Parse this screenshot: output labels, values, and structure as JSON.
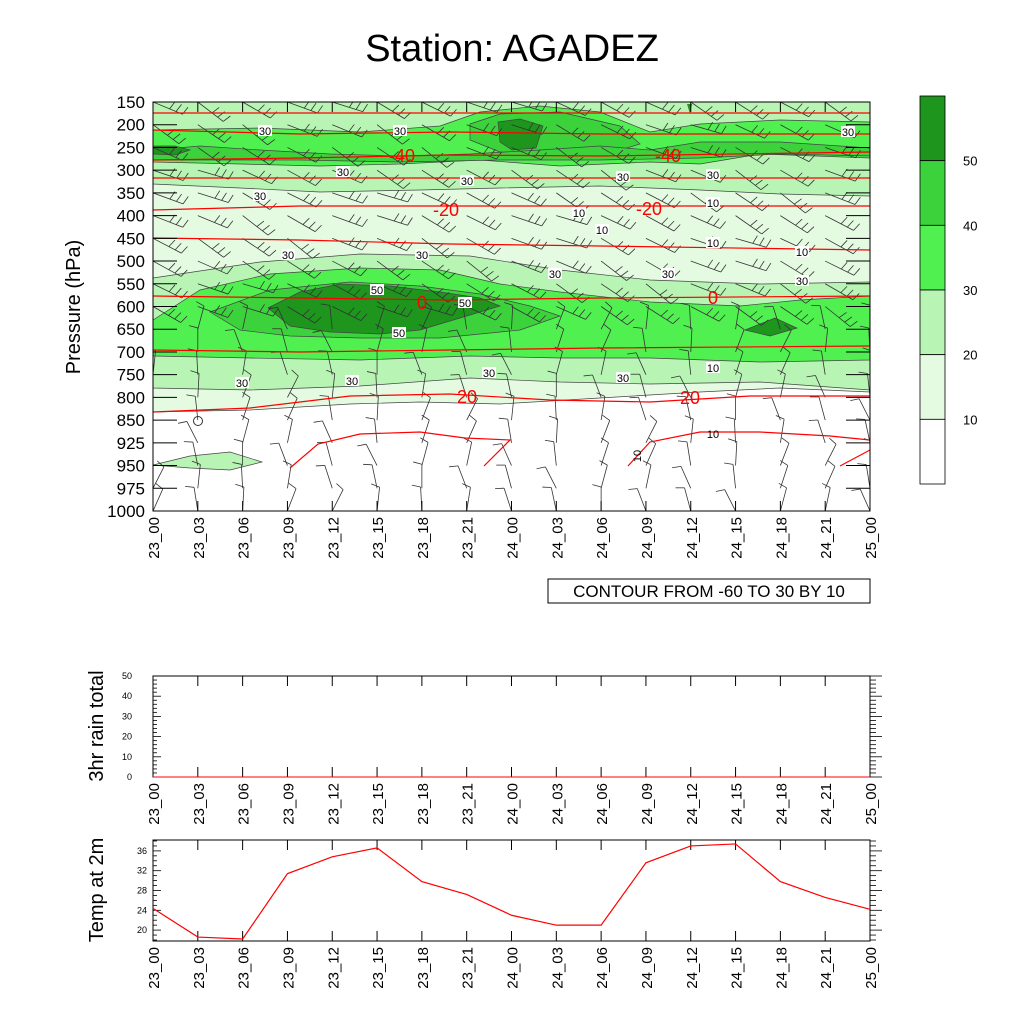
{
  "title": "Station: AGADEZ",
  "time_labels": [
    "23_00",
    "23_03",
    "23_06",
    "23_09",
    "23_12",
    "23_15",
    "23_18",
    "23_21",
    "24_00",
    "24_03",
    "24_06",
    "24_09",
    "24_12",
    "24_15",
    "24_18",
    "24_21",
    "25_00"
  ],
  "chart_data": [
    {
      "type": "heatmap",
      "name": "time-pressure cross-section",
      "ylabel": "Pressure (hPa)",
      "x": [
        "23_00",
        "23_03",
        "23_06",
        "23_09",
        "23_12",
        "23_15",
        "23_18",
        "23_21",
        "24_00",
        "24_03",
        "24_06",
        "24_09",
        "24_12",
        "24_15",
        "24_18",
        "24_21",
        "25_00"
      ],
      "y_levels": [
        150,
        200,
        250,
        300,
        350,
        400,
        450,
        500,
        550,
        600,
        650,
        700,
        750,
        800,
        850,
        925,
        950,
        975,
        1000
      ],
      "fill_levels": [
        10,
        20,
        30,
        40,
        50
      ],
      "fill_colors": [
        "#ffffff",
        "#e4fbe2",
        "#b8f5b4",
        "#50f050",
        "#3cd23c",
        "#1e961e"
      ],
      "contour_info": "CONTOUR FROM -60 TO 30 BY 10",
      "contour_color": "#ff0000",
      "contour_labels": [
        "-40",
        "-40",
        "-20",
        "-20",
        "0",
        "0",
        "20",
        "20"
      ],
      "fill_contour_labels": [
        "30",
        "30",
        "30",
        "30",
        "30",
        "30",
        "30",
        "30",
        "10",
        "10",
        "10",
        "10",
        "30",
        "30",
        "30",
        "30",
        "10",
        "50",
        "50",
        "50",
        "30",
        "30",
        "30",
        "30",
        "30",
        "10"
      ],
      "legend_labels": [
        "10",
        "20",
        "30",
        "40",
        "50"
      ]
    },
    {
      "type": "line",
      "ylabel": "3hr rain total",
      "yticks": [
        "0",
        "10",
        "20",
        "30",
        "40",
        "50"
      ],
      "ylim": [
        0,
        50
      ],
      "x": [
        "23_00",
        "23_03",
        "23_06",
        "23_09",
        "23_12",
        "23_15",
        "23_18",
        "23_21",
        "24_00",
        "24_03",
        "24_06",
        "24_09",
        "24_12",
        "24_15",
        "24_18",
        "24_21",
        "25_00"
      ],
      "values": [
        0,
        0,
        0,
        0,
        0,
        0,
        0,
        0,
        0,
        0,
        0,
        0,
        0,
        0,
        0,
        0,
        0
      ]
    },
    {
      "type": "line",
      "ylabel": "Temp at 2m",
      "yticks": [
        "20",
        "24",
        "28",
        "32",
        "36"
      ],
      "ylim": [
        17.8,
        38.2
      ],
      "color": "#ff0000",
      "x": [
        "23_00",
        "23_03",
        "23_06",
        "23_09",
        "23_12",
        "23_15",
        "23_18",
        "23_21",
        "24_00",
        "24_03",
        "24_06",
        "24_09",
        "24_12",
        "24_15",
        "24_18",
        "24_21",
        "25_00"
      ],
      "values": [
        24.4,
        18.6,
        18.2,
        31.4,
        34.8,
        36.6,
        29.8,
        27.2,
        23.0,
        21.0,
        21.0,
        33.6,
        37.0,
        37.4,
        29.8,
        26.6,
        24.2
      ]
    }
  ]
}
